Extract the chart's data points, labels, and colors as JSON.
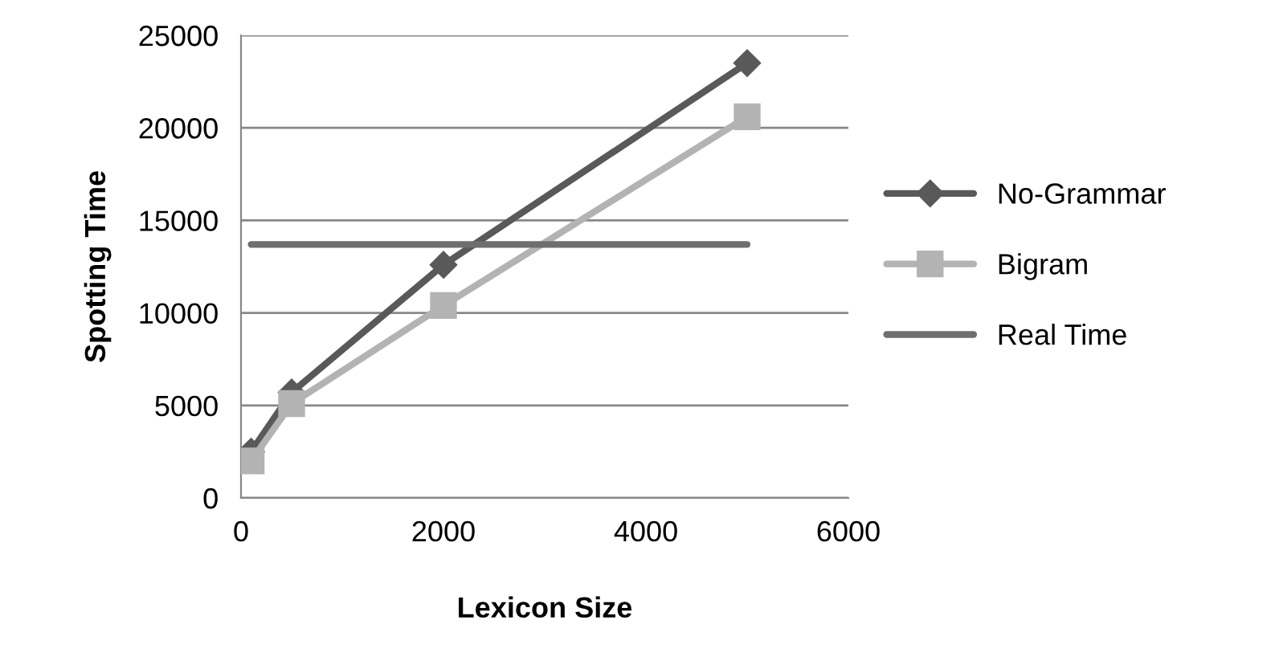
{
  "chart_data": {
    "type": "line",
    "xlabel": "Lexicon Size",
    "ylabel": "Spotting Time",
    "xlim": [
      0,
      6000
    ],
    "xticks": [
      0,
      2000,
      4000,
      6000
    ],
    "ylim": [
      0,
      25000
    ],
    "yticks": [
      0,
      5000,
      10000,
      15000,
      20000,
      25000
    ],
    "grid": "y",
    "legend": "right",
    "series": [
      {
        "name": "No-Grammar",
        "color": "#595959",
        "marker": "diamond",
        "x": [
          100,
          500,
          2000,
          5000
        ],
        "values": [
          2500,
          5700,
          12600,
          23500
        ]
      },
      {
        "name": "Bigram",
        "color": "#b3b3b3",
        "marker": "square",
        "x": [
          100,
          500,
          2000,
          5000
        ],
        "values": [
          2000,
          5100,
          10400,
          20600
        ]
      },
      {
        "name": "Real Time",
        "color": "#6e6e6e",
        "marker": "none",
        "x": [
          100,
          5000
        ],
        "values": [
          13700,
          13700
        ]
      }
    ]
  }
}
